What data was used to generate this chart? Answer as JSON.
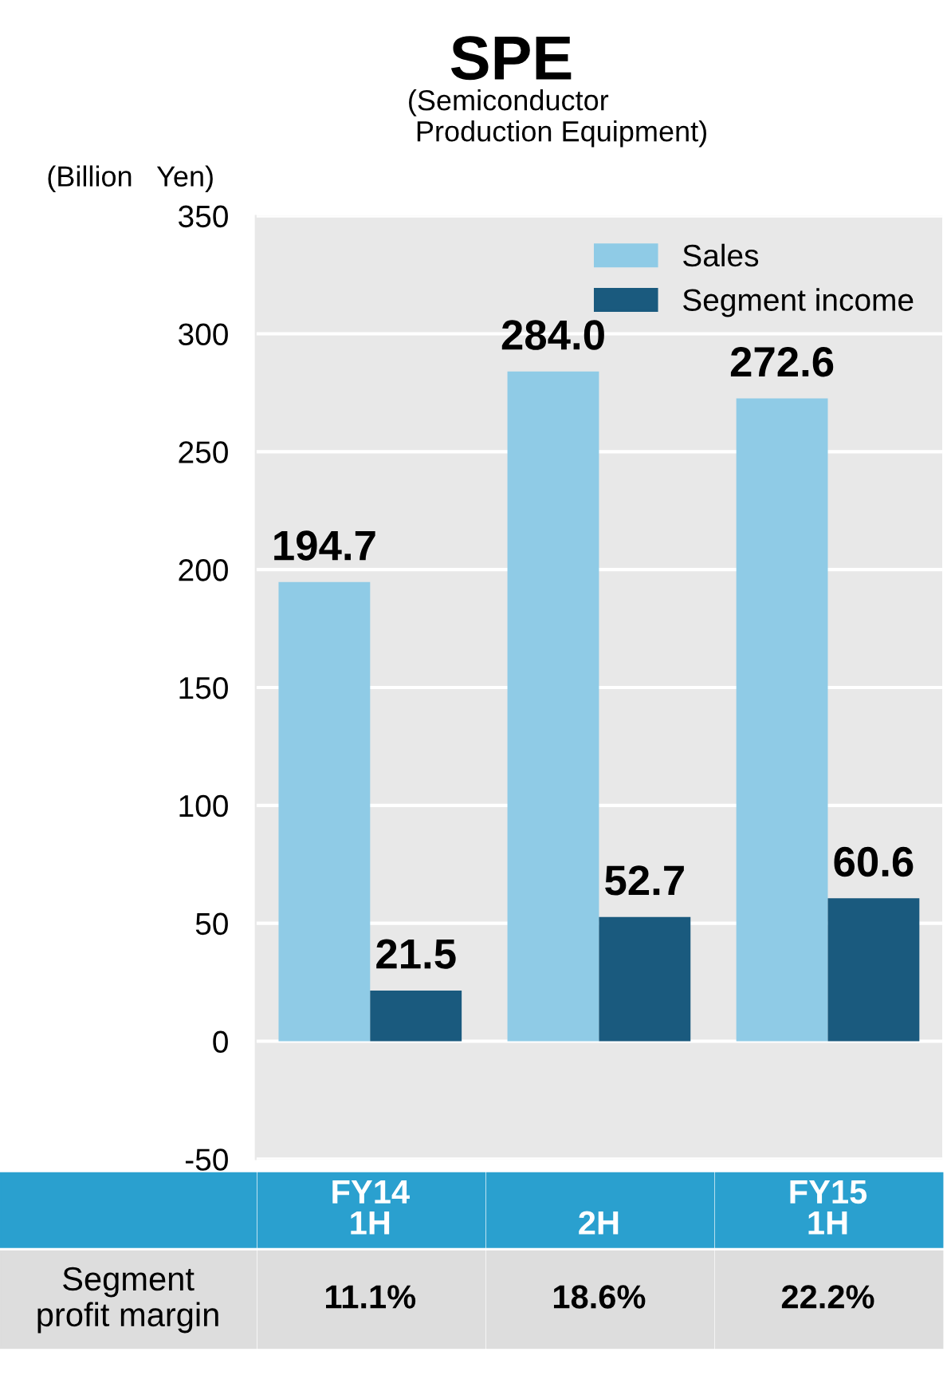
{
  "chart_data": {
    "type": "bar",
    "title": "SPE",
    "subtitle": "(Semiconductor\n Production Equipment)",
    "ylabel": "(Billion   Yen)",
    "categories": [
      "FY14\n1H",
      "2H",
      "FY15\n1H"
    ],
    "series": [
      {
        "name": "Sales",
        "color": "#8fcbe6",
        "values": [
          194.7,
          284.0,
          272.6
        ],
        "value_labels": [
          "194.7",
          "284.0",
          "272.6"
        ]
      },
      {
        "name": "Segment income",
        "color": "#1a5a7e",
        "values": [
          21.5,
          52.7,
          60.6
        ],
        "value_labels": [
          "21.5",
          "52.7",
          "60.6"
        ]
      }
    ],
    "ylim": [
      -50,
      350
    ],
    "yticks": [
      -50,
      0,
      50,
      100,
      150,
      200,
      250,
      300,
      350
    ],
    "grid": "y",
    "legend": "top right",
    "annotations": [
      "Segment\nprofit margin",
      "11.1%",
      "18.6%",
      "22.2%"
    ]
  }
}
